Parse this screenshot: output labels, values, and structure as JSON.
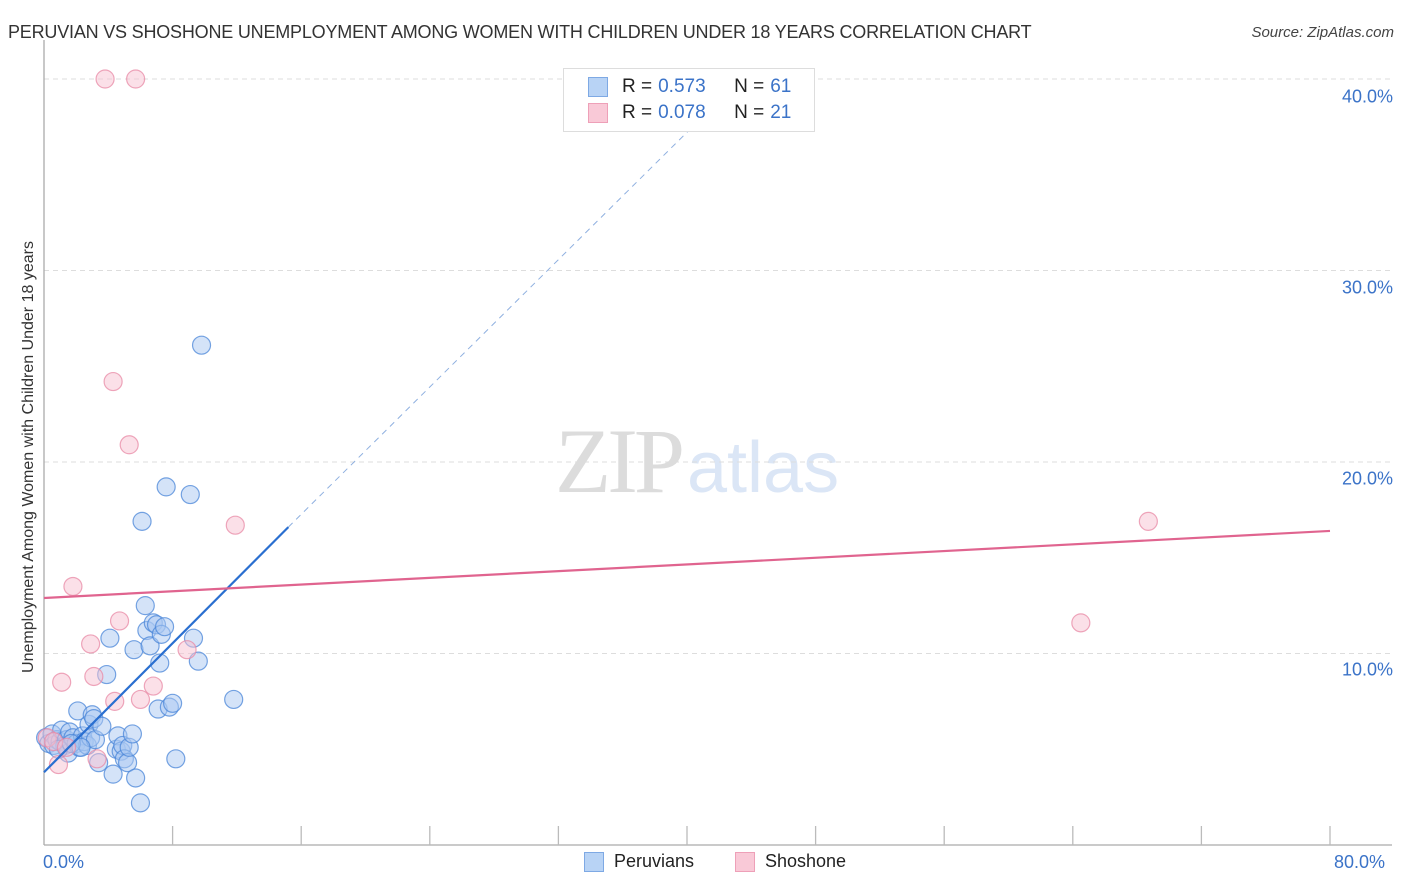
{
  "header": {
    "title": "PERUVIAN VS SHOSHONE UNEMPLOYMENT AMONG WOMEN WITH CHILDREN UNDER 18 YEARS CORRELATION CHART",
    "source": "Source: ZipAtlas.com"
  },
  "watermark": {
    "zip": "ZIP",
    "atlas": "atlas"
  },
  "axes": {
    "ylabel": "Unemployment Among Women with Children Under 18 years",
    "y_ticks": [
      "40.0%",
      "30.0%",
      "20.0%",
      "10.0%"
    ],
    "x_ticks": {
      "left": "0.0%",
      "right": "80.0%"
    }
  },
  "legend": {
    "rows": [
      {
        "r_label": "R =",
        "r_value": "0.573",
        "n_label": "N =",
        "n_value": "61",
        "color": "#a9c8f2"
      },
      {
        "r_label": "R =",
        "r_value": "0.078",
        "n_label": "N =",
        "n_value": "21",
        "color": "#f7c1d1"
      }
    ],
    "bottom": [
      {
        "label": "Peruvians",
        "color": "#a9c8f2"
      },
      {
        "label": "Shoshone",
        "color": "#f7c1d1"
      }
    ]
  },
  "colors": {
    "peruvians_fill": "#a9c8f2",
    "peruvians_stroke": "#4a86d8",
    "peruvians_line": "#2a6fd0",
    "shoshone_fill": "#f7c1d1",
    "shoshone_stroke": "#e88aa6",
    "shoshone_line": "#e0648f",
    "tick_label": "#3b73c8",
    "grid": "#dddddd"
  },
  "chart_data": {
    "type": "scatter",
    "title": "PERUVIAN VS SHOSHONE UNEMPLOYMENT AMONG WOMEN WITH CHILDREN UNDER 18 YEARS CORRELATION CHART",
    "xlabel": "",
    "ylabel": "Unemployment Among Women with Children Under 18 years",
    "xlim": [
      0,
      80
    ],
    "ylim": [
      0,
      41
    ],
    "y_ticks": [
      10,
      20,
      30,
      40
    ],
    "x_ticks_labeled": [
      0,
      80
    ],
    "grid": "horizontal dashed",
    "legend_position": "top-center",
    "series": [
      {
        "name": "Peruvians",
        "R": 0.573,
        "N": 61,
        "points": [
          [
            0.1,
            5.6
          ],
          [
            0.3,
            5.3
          ],
          [
            0.5,
            5.8
          ],
          [
            0.6,
            5.2
          ],
          [
            0.8,
            5.5
          ],
          [
            1.0,
            5.4
          ],
          [
            1.1,
            6.0
          ],
          [
            1.3,
            5.2
          ],
          [
            1.4,
            5.5
          ],
          [
            1.5,
            4.8
          ],
          [
            1.6,
            5.9
          ],
          [
            1.8,
            5.6
          ],
          [
            2.0,
            5.3
          ],
          [
            2.1,
            7.0
          ],
          [
            2.2,
            5.1
          ],
          [
            2.4,
            5.7
          ],
          [
            2.5,
            5.4
          ],
          [
            2.7,
            5.2
          ],
          [
            2.8,
            6.3
          ],
          [
            2.9,
            5.6
          ],
          [
            3.0,
            6.8
          ],
          [
            3.1,
            6.6
          ],
          [
            3.2,
            5.5
          ],
          [
            3.4,
            4.3
          ],
          [
            3.6,
            6.2
          ],
          [
            3.9,
            8.9
          ],
          [
            4.1,
            10.8
          ],
          [
            4.3,
            3.7
          ],
          [
            4.5,
            5.0
          ],
          [
            4.6,
            5.7
          ],
          [
            4.8,
            4.9
          ],
          [
            4.9,
            5.2
          ],
          [
            5.0,
            4.5
          ],
          [
            5.2,
            4.3
          ],
          [
            5.3,
            5.1
          ],
          [
            5.5,
            5.8
          ],
          [
            5.7,
            3.5
          ],
          [
            5.6,
            10.2
          ],
          [
            6.0,
            2.2
          ],
          [
            6.1,
            16.9
          ],
          [
            6.3,
            12.5
          ],
          [
            6.4,
            11.2
          ],
          [
            6.6,
            10.4
          ],
          [
            6.8,
            11.6
          ],
          [
            7.0,
            11.5
          ],
          [
            7.1,
            7.1
          ],
          [
            7.2,
            9.5
          ],
          [
            7.3,
            11.0
          ],
          [
            7.5,
            11.4
          ],
          [
            7.8,
            7.2
          ],
          [
            8.0,
            7.4
          ],
          [
            8.2,
            4.5
          ],
          [
            7.6,
            18.7
          ],
          [
            9.1,
            18.3
          ],
          [
            9.3,
            10.8
          ],
          [
            9.8,
            26.1
          ],
          [
            9.6,
            9.6
          ],
          [
            11.8,
            7.6
          ],
          [
            0.9,
            5.0
          ],
          [
            1.7,
            5.3
          ],
          [
            2.3,
            5.1
          ]
        ],
        "trendline": {
          "from": [
            0,
            3.8
          ],
          "to": [
            15.2,
            16.6
          ],
          "dashed_extension_to": [
            40.1,
            37.3
          ]
        }
      },
      {
        "name": "Shoshone",
        "R": 0.078,
        "N": 21,
        "points": [
          [
            0.2,
            5.6
          ],
          [
            0.6,
            5.4
          ],
          [
            0.9,
            4.2
          ],
          [
            1.1,
            8.5
          ],
          [
            1.4,
            5.1
          ],
          [
            1.8,
            13.5
          ],
          [
            2.9,
            10.5
          ],
          [
            3.1,
            8.8
          ],
          [
            3.3,
            4.5
          ],
          [
            4.4,
            7.5
          ],
          [
            4.7,
            11.7
          ],
          [
            4.3,
            24.2
          ],
          [
            5.3,
            20.9
          ],
          [
            6.0,
            7.6
          ],
          [
            6.8,
            8.3
          ],
          [
            8.9,
            10.2
          ],
          [
            11.9,
            16.7
          ],
          [
            5.7,
            40.0
          ],
          [
            3.8,
            40.0
          ],
          [
            64.5,
            11.6
          ],
          [
            68.7,
            16.9
          ]
        ],
        "trendline": {
          "from": [
            0,
            12.9
          ],
          "to": [
            80,
            16.4
          ]
        }
      }
    ]
  }
}
